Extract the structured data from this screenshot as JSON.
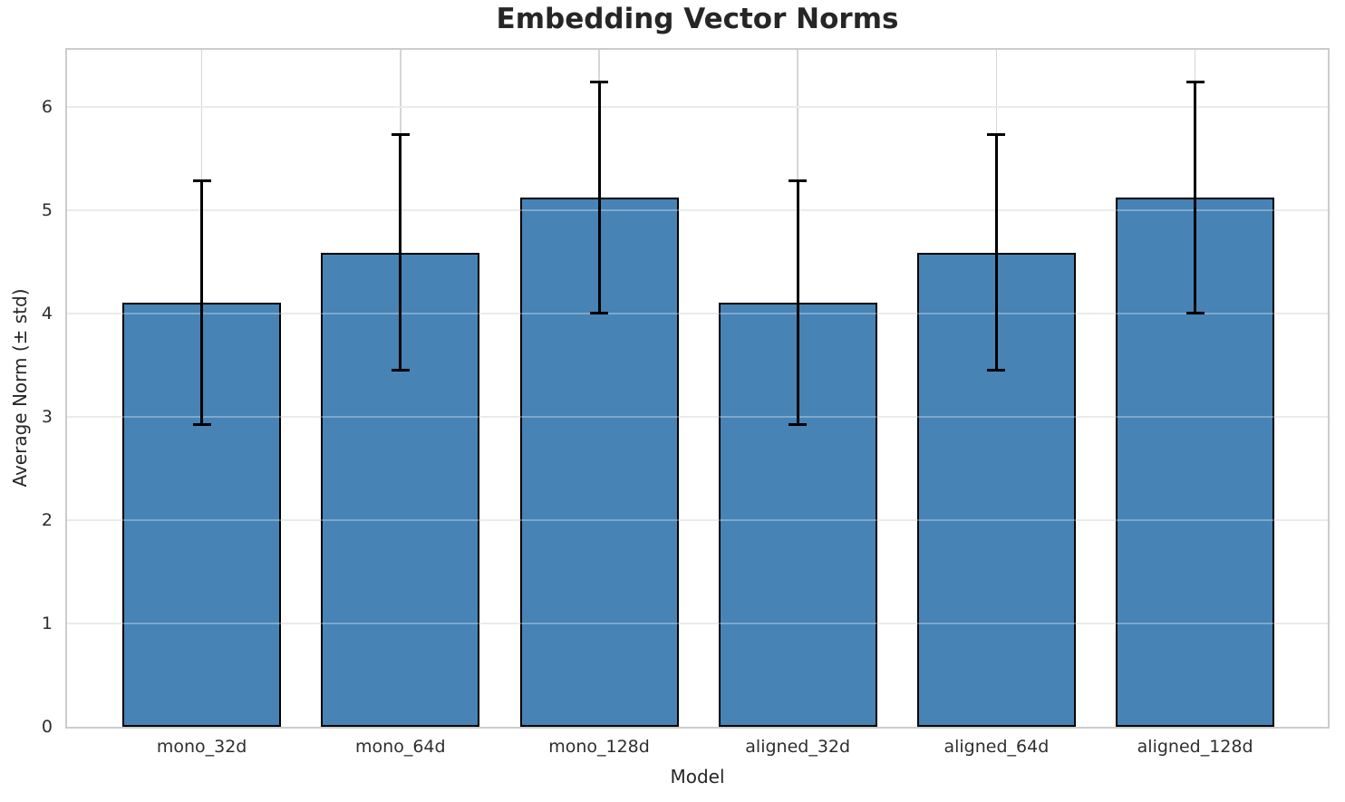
{
  "chart_data": {
    "type": "bar",
    "title": "Embedding Vector Norms",
    "xlabel": "Model",
    "ylabel": "Average Norm (± std)",
    "categories": [
      "mono_32d",
      "mono_64d",
      "mono_128d",
      "aligned_32d",
      "aligned_64d",
      "aligned_128d"
    ],
    "values": [
      4.1,
      4.59,
      5.12,
      4.1,
      4.59,
      5.12
    ],
    "errors": [
      1.18,
      1.14,
      1.12,
      1.18,
      1.14,
      1.12
    ],
    "yticks": [
      0,
      1,
      2,
      3,
      4,
      5,
      6
    ],
    "ylim": [
      0,
      6.55
    ],
    "grid": true,
    "legend": false,
    "colors": {
      "bar_fill": "#4783B5",
      "bar_edge": "#000000",
      "error_bar": "#000000",
      "grid": "#e2e2e2",
      "spine": "#cccccc",
      "text": "#262626",
      "background": "#ffffff"
    }
  }
}
